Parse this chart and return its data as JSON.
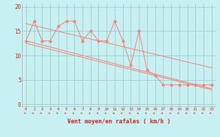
{
  "xlabel": "Vent moyen/en rafales ( km/h )",
  "bg_color": "#c8f0f0",
  "grid_color": "#99cccc",
  "line_color": "#f08888",
  "arrow_color": "#dd5555",
  "tick_color": "#cc2222",
  "xlim": [
    -0.5,
    23.5
  ],
  "ylim": [
    -0.5,
    20.5
  ],
  "xticks": [
    0,
    1,
    2,
    3,
    4,
    5,
    6,
    7,
    8,
    9,
    10,
    11,
    12,
    13,
    14,
    15,
    16,
    17,
    18,
    19,
    20,
    21,
    22,
    23
  ],
  "yticks": [
    0,
    5,
    10,
    15,
    20
  ],
  "data_x": [
    0,
    1,
    2,
    3,
    4,
    5,
    6,
    7,
    8,
    9,
    10,
    11,
    12,
    13,
    14,
    15,
    16,
    17,
    18,
    19,
    20,
    21,
    22,
    23
  ],
  "data_y": [
    13,
    17,
    13,
    13,
    16,
    17,
    17,
    13,
    15,
    13,
    13,
    17,
    13,
    8,
    15,
    7,
    6,
    4,
    4,
    4,
    4,
    4,
    4,
    4
  ],
  "trend1_x": [
    0,
    23
  ],
  "trend1_y": [
    16.5,
    7.5
  ],
  "trend2_x": [
    0,
    23
  ],
  "trend2_y": [
    13.0,
    3.2
  ],
  "trend3_x": [
    0,
    23
  ],
  "trend3_y": [
    12.5,
    3.0
  ]
}
